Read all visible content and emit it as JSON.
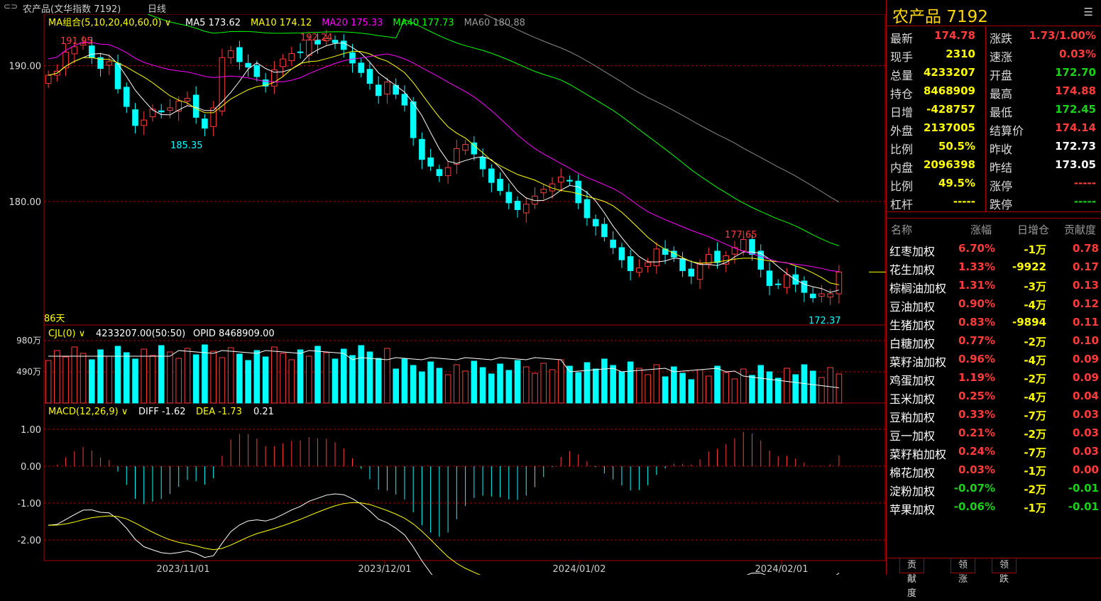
{
  "header": {
    "link_icon": "link-icon",
    "title": "农产品(文华指数 7192)",
    "period": "日线"
  },
  "colors": {
    "up": "#ff3b3b",
    "down": "#00ffff",
    "ma5": "#ffffff",
    "ma10": "#ffff00",
    "ma20": "#ff00ff",
    "ma40": "#00ff00",
    "ma60": "#888888"
  },
  "chart_data": [
    {
      "type": "candlestick",
      "legend": {
        "group": "MA组合(5,10,20,40,60,0)",
        "ma5": "MA5 173.62",
        "ma10": "MA10 174.12",
        "ma20": "MA20 175.33",
        "ma40": "MA40 177.73",
        "ma60": "MA60 180.88"
      },
      "y_ticks": [
        "190.00",
        "180.00"
      ],
      "ylim": [
        170.9,
        193.8
      ],
      "x_ticks": [
        "2023/11/01",
        "2023/12/01",
        "2024/01/02",
        "2024/02/01"
      ],
      "annotations": {
        "high1": "191.95",
        "high2": "192.24",
        "low1": "185.35",
        "high3": "177.65",
        "low2": "172.37",
        "days": "86天"
      },
      "closes": [
        189.3,
        189.6,
        191.0,
        191.4,
        191.7,
        190.6,
        189.8,
        190.3,
        188.3,
        187.0,
        185.6,
        186.0,
        186.8,
        186.6,
        186.9,
        187.4,
        187.6,
        186.2,
        185.4,
        186.9,
        190.6,
        191.1,
        190.3,
        189.9,
        189.2,
        188.5,
        189.7,
        190.5,
        190.9,
        191.0,
        191.9,
        191.6,
        192.0,
        191.7,
        191.2,
        190.2,
        189.5,
        188.7,
        187.8,
        188.8,
        187.9,
        187.1,
        184.7,
        183.1,
        182.6,
        181.9,
        182.5,
        183.9,
        184.2,
        183.5,
        182.4,
        181.4,
        180.8,
        179.9,
        179.4,
        179.8,
        180.4,
        180.9,
        181.3,
        181.8,
        181.5,
        179.9,
        178.8,
        178.2,
        177.4,
        176.6,
        175.7,
        174.9,
        175.1,
        175.5,
        176.5,
        176.1,
        175.9,
        174.9,
        174.5,
        175.4,
        176.1,
        175.5,
        176.0,
        176.6,
        177.2,
        176.1,
        175.0,
        173.8,
        173.9,
        174.6,
        173.9,
        173.3,
        172.9,
        173.2,
        173.2,
        174.8
      ],
      "volume_ticks": [
        "980万",
        "490万"
      ],
      "volume_legend": "CJL(0)",
      "volume_value": "4233207.00(50:50)",
      "oi_legend": "OPID 8468909.00",
      "macd_legend": "MACD(12,26,9)",
      "diff": "DIFF -1.62",
      "dea": "DEA -1.73",
      "macd_val": "0.21",
      "macd_ticks": [
        "1.00",
        "0.00",
        "-1.00",
        "-2.00"
      ]
    }
  ],
  "quote": {
    "title": "农产品  7192",
    "menu_icon": "list-menu-icon",
    "rows": [
      {
        "l1": "最新",
        "v1": "174.78",
        "c1": "red",
        "l2": "涨跌",
        "v2": "1.73/1.00%",
        "c2": "red"
      },
      {
        "l1": "现手",
        "v1": "2310",
        "c1": "yellow",
        "l2": "速涨",
        "v2": "0.03%",
        "c2": "red"
      },
      {
        "l1": "总量",
        "v1": "4233207",
        "c1": "yellow",
        "l2": "开盘",
        "v2": "172.70",
        "c2": "green"
      },
      {
        "l1": "持仓",
        "v1": "8468909",
        "c1": "yellow",
        "l2": "最高",
        "v2": "174.88",
        "c2": "red"
      },
      {
        "l1": "日增",
        "v1": "-428757",
        "c1": "yellow",
        "l2": "最低",
        "v2": "172.45",
        "c2": "green"
      },
      {
        "l1": "外盘",
        "v1": "2137005",
        "c1": "yellow",
        "l2": "结算价",
        "v2": "174.14",
        "c2": "red"
      },
      {
        "l1": "比例",
        "v1": "50.5%",
        "c1": "yellow",
        "l2": "昨收",
        "v2": "172.73",
        "c2": "white"
      },
      {
        "l1": "内盘",
        "v1": "2096398",
        "c1": "yellow",
        "l2": "昨结",
        "v2": "173.05",
        "c2": "white"
      },
      {
        "l1": "比例",
        "v1": "49.5%",
        "c1": "yellow",
        "l2": "涨停",
        "v2": "-----",
        "c2": "red"
      },
      {
        "l1": "杠杆",
        "v1": "-----",
        "c1": "yellow",
        "l2": "跌停",
        "v2": "-----",
        "c2": "green"
      }
    ]
  },
  "contrib": {
    "headers": [
      "名称",
      "涨幅",
      "日增仓",
      "贡献度"
    ],
    "rows": [
      {
        "name": "红枣加权",
        "chg": "6.70%",
        "cc": "red",
        "oi": "-1万",
        "oc": "yellow",
        "ct": "0.78",
        "tc": "red"
      },
      {
        "name": "花生加权",
        "chg": "1.33%",
        "cc": "red",
        "oi": "-9922",
        "oc": "yellow",
        "ct": "0.17",
        "tc": "red"
      },
      {
        "name": "棕榈油加权",
        "chg": "1.31%",
        "cc": "red",
        "oi": "-3万",
        "oc": "yellow",
        "ct": "0.13",
        "tc": "red"
      },
      {
        "name": "豆油加权",
        "chg": "0.90%",
        "cc": "red",
        "oi": "-4万",
        "oc": "yellow",
        "ct": "0.12",
        "tc": "red"
      },
      {
        "name": "生猪加权",
        "chg": "0.83%",
        "cc": "red",
        "oi": "-9894",
        "oc": "yellow",
        "ct": "0.11",
        "tc": "red"
      },
      {
        "name": "白糖加权",
        "chg": "0.77%",
        "cc": "red",
        "oi": "-2万",
        "oc": "yellow",
        "ct": "0.10",
        "tc": "red"
      },
      {
        "name": "菜籽油加权",
        "chg": "0.96%",
        "cc": "red",
        "oi": "-4万",
        "oc": "yellow",
        "ct": "0.09",
        "tc": "red"
      },
      {
        "name": "鸡蛋加权",
        "chg": "1.19%",
        "cc": "red",
        "oi": "-2万",
        "oc": "yellow",
        "ct": "0.09",
        "tc": "red"
      },
      {
        "name": "玉米加权",
        "chg": "0.25%",
        "cc": "red",
        "oi": "-4万",
        "oc": "yellow",
        "ct": "0.04",
        "tc": "red"
      },
      {
        "name": "豆粕加权",
        "chg": "0.33%",
        "cc": "red",
        "oi": "-7万",
        "oc": "yellow",
        "ct": "0.03",
        "tc": "red"
      },
      {
        "name": "豆一加权",
        "chg": "0.21%",
        "cc": "red",
        "oi": "-2万",
        "oc": "yellow",
        "ct": "0.03",
        "tc": "red"
      },
      {
        "name": "菜籽粕加权",
        "chg": "0.24%",
        "cc": "red",
        "oi": "-7万",
        "oc": "yellow",
        "ct": "0.03",
        "tc": "red"
      },
      {
        "name": "棉花加权",
        "chg": "0.03%",
        "cc": "red",
        "oi": "-1万",
        "oc": "yellow",
        "ct": "0.00",
        "tc": "red"
      },
      {
        "name": "淀粉加权",
        "chg": "-0.07%",
        "cc": "green",
        "oi": "-2万",
        "oc": "yellow",
        "ct": "-0.01",
        "tc": "green"
      },
      {
        "name": "苹果加权",
        "chg": "-0.06%",
        "cc": "green",
        "oi": "-1万",
        "oc": "yellow",
        "ct": "-0.01",
        "tc": "green"
      }
    ]
  },
  "tabs": [
    "贡献度",
    "领涨",
    "领跌"
  ]
}
